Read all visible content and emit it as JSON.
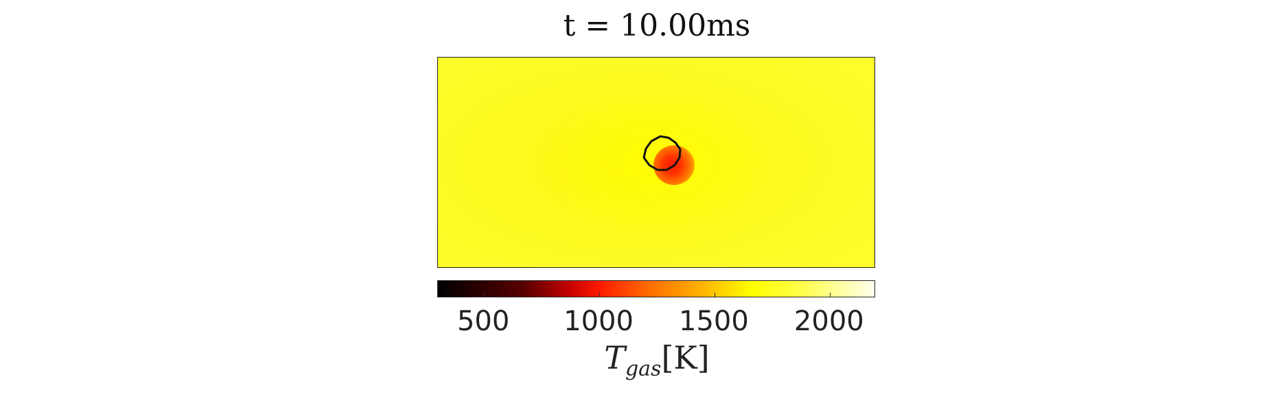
{
  "chart_data": {
    "type": "heatmap",
    "title": "t = 10.00ms",
    "colormap": "hot",
    "field": "gas temperature",
    "background_color": "#fdfd2c",
    "hotspot_color": "#ff1a00",
    "contour_color": "#111111",
    "colorbar": {
      "label_main": "T",
      "label_sub": "gas",
      "label_unit": "[K]",
      "ticks": [
        500,
        1000,
        1500,
        2000
      ],
      "range": [
        300,
        2200
      ],
      "tick_labels": [
        "500",
        "1000",
        "1500",
        "2000"
      ]
    },
    "hotspot": {
      "approx_center_temperature": 1050,
      "ambient_temperature": 1850
    },
    "axes_visible": false
  }
}
